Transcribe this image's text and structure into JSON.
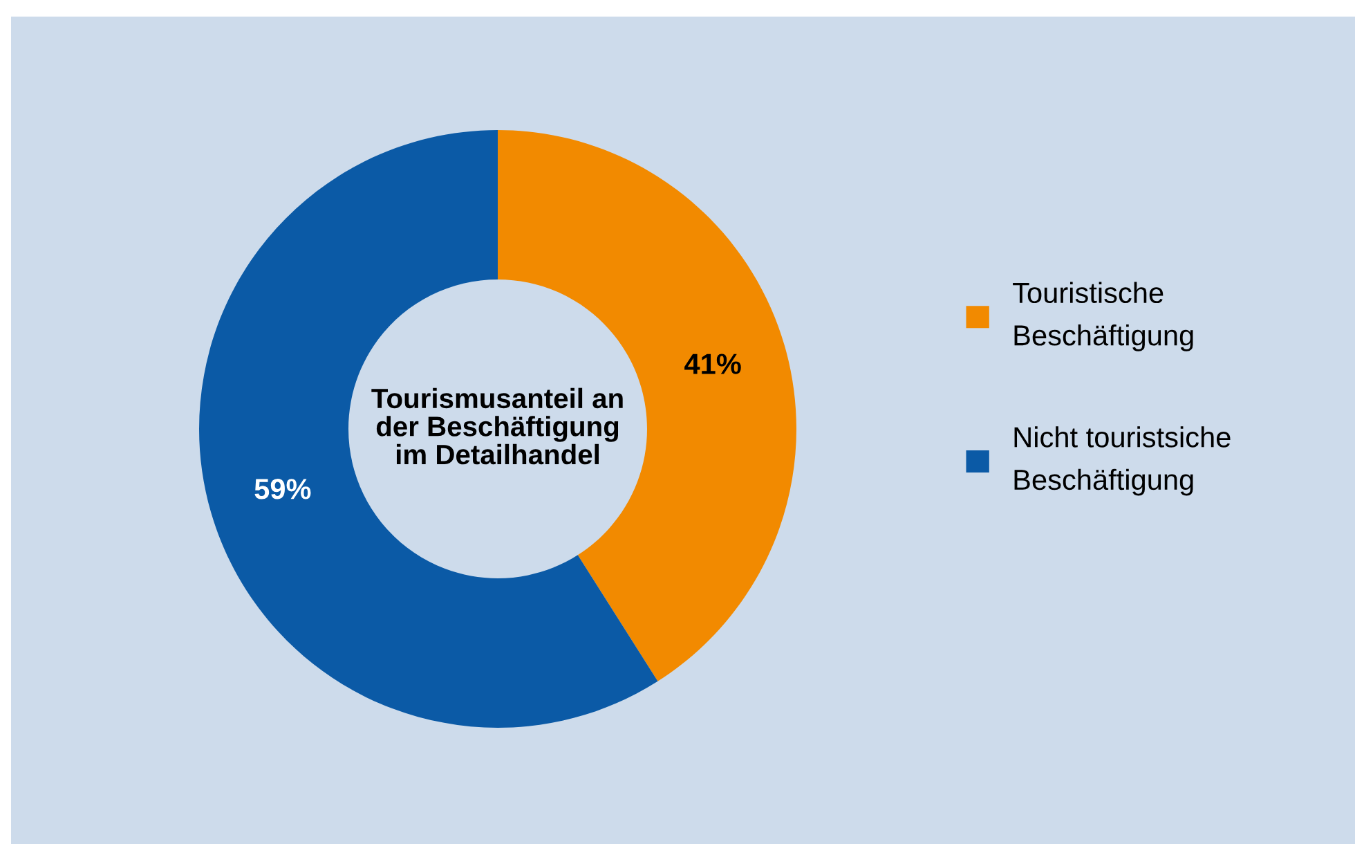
{
  "chart_data": {
    "type": "donut",
    "title": "Tourismusanteil an\nder Beschäftigung\nim Detailhandel",
    "categories": [
      "Touristische\nBeschäftigung",
      "Nicht touristsiche\nBeschäftigung"
    ],
    "values": [
      41,
      59
    ],
    "colors": [
      "#f28a00",
      "#0b5aa6"
    ],
    "value_labels": [
      "41%",
      "59%"
    ],
    "legend": "right"
  }
}
